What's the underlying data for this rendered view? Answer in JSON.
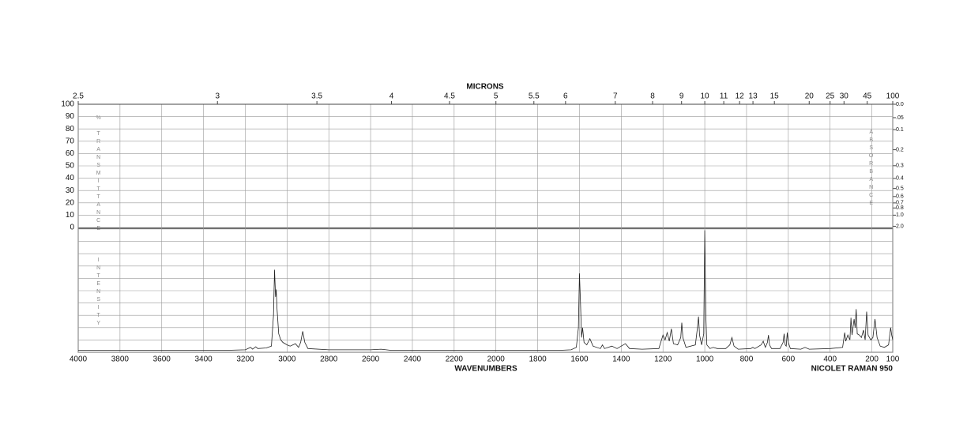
{
  "chart_data": {
    "type": "line",
    "title": "MICRONS",
    "xlabel": "WAVENUMBERS",
    "note": "NICOLET RAMAN 950",
    "ylabel": "% TRANSMITTANCE",
    "ylabel_lower": "INTENSITY",
    "y2label": "ABSORBANCE",
    "xlim": [
      4000,
      100
    ],
    "xticks": [
      4000,
      3800,
      3600,
      3400,
      3200,
      3000,
      2800,
      2600,
      2400,
      2200,
      2000,
      1800,
      1600,
      1400,
      1200,
      1000,
      800,
      600,
      400,
      200,
      100
    ],
    "x2lim": [
      2.5,
      100
    ],
    "x2ticks": [
      2.5,
      3,
      3.5,
      4,
      4.5,
      5,
      5.5,
      6,
      7,
      8,
      9,
      10,
      11,
      12,
      13,
      15,
      20,
      25,
      30,
      45,
      100
    ],
    "ylim": [
      0,
      100
    ],
    "yticks": [
      100,
      90,
      80,
      70,
      60,
      50,
      40,
      30,
      20,
      10,
      0
    ],
    "y2ticks": [
      {
        "value": 0,
        "label": "0.0"
      },
      {
        "value": 0.05,
        "label": ".05"
      },
      {
        "value": 0.1,
        "label": "0.1"
      },
      {
        "value": 0.2,
        "label": "0.2"
      },
      {
        "value": 0.3,
        "label": "0.3"
      },
      {
        "value": 0.4,
        "label": "0.4"
      },
      {
        "value": 0.5,
        "label": "0.5"
      },
      {
        "value": 0.6,
        "label": "0.6"
      },
      {
        "value": 0.7,
        "label": "0.7"
      },
      {
        "value": 0.8,
        "label": "0.8"
      },
      {
        "value": 1,
        "label": "1.0"
      },
      {
        "value": 2,
        "label": "2.0"
      }
    ],
    "grid": true,
    "series": [
      {
        "color": "#222222",
        "x": [
          4000,
          3600,
          3300,
          3200,
          3175,
          3165,
          3150,
          3140,
          3100,
          3075,
          3065,
          3060,
          3055,
          3052,
          3048,
          3040,
          3030,
          3020,
          3000,
          2985,
          2960,
          2945,
          2935,
          2925,
          2915,
          2900,
          2800,
          2600,
          2550,
          2500,
          2000,
          1700,
          1640,
          1615,
          1605,
          1600,
          1595,
          1590,
          1585,
          1578,
          1565,
          1550,
          1535,
          1500,
          1490,
          1480,
          1445,
          1420,
          1380,
          1360,
          1300,
          1220,
          1200,
          1190,
          1180,
          1170,
          1160,
          1150,
          1130,
          1115,
          1110,
          1105,
          1090,
          1045,
          1035,
          1030,
          1025,
          1015,
          1005,
          1000,
          995,
          990,
          975,
          960,
          940,
          900,
          880,
          870,
          860,
          840,
          780,
          770,
          760,
          730,
          720,
          710,
          700,
          695,
          690,
          680,
          640,
          625,
          620,
          615,
          610,
          605,
          600,
          590,
          540,
          520,
          500,
          400,
          340,
          330,
          325,
          315,
          305,
          300,
          295,
          285,
          280,
          275,
          270,
          260,
          250,
          240,
          232,
          225,
          218,
          205,
          195,
          185,
          175,
          160,
          140,
          120,
          110,
          105,
          100
        ],
        "values": [
          1.5,
          1.5,
          1.5,
          2,
          4,
          2.5,
          4.5,
          3,
          3.5,
          5,
          30,
          67,
          45,
          51,
          35,
          15,
          10,
          8,
          6,
          5,
          7,
          4,
          8,
          17,
          8,
          3,
          2,
          2,
          2.5,
          1.5,
          1.5,
          1.5,
          2,
          4,
          20,
          64,
          40,
          12,
          20,
          8,
          6,
          11,
          5,
          3,
          6,
          3,
          5,
          3,
          7,
          3,
          2.5,
          3,
          14,
          10,
          16,
          9,
          19,
          7,
          6,
          12,
          24,
          12,
          4,
          6,
          20,
          29,
          14,
          6,
          15,
          99,
          30,
          6,
          3,
          4,
          3,
          3,
          6,
          12,
          5,
          2.5,
          3,
          4,
          3,
          6,
          9,
          4,
          8,
          14,
          6,
          3,
          3,
          8,
          15,
          6,
          5,
          16,
          8,
          3,
          2.5,
          4,
          2.5,
          3,
          4,
          16,
          9,
          14,
          10,
          28,
          14,
          27,
          20,
          35,
          15,
          14,
          12,
          18,
          10,
          33,
          14,
          10,
          12,
          27,
          12,
          5,
          4,
          6,
          20,
          14,
          10
        ]
      }
    ]
  }
}
